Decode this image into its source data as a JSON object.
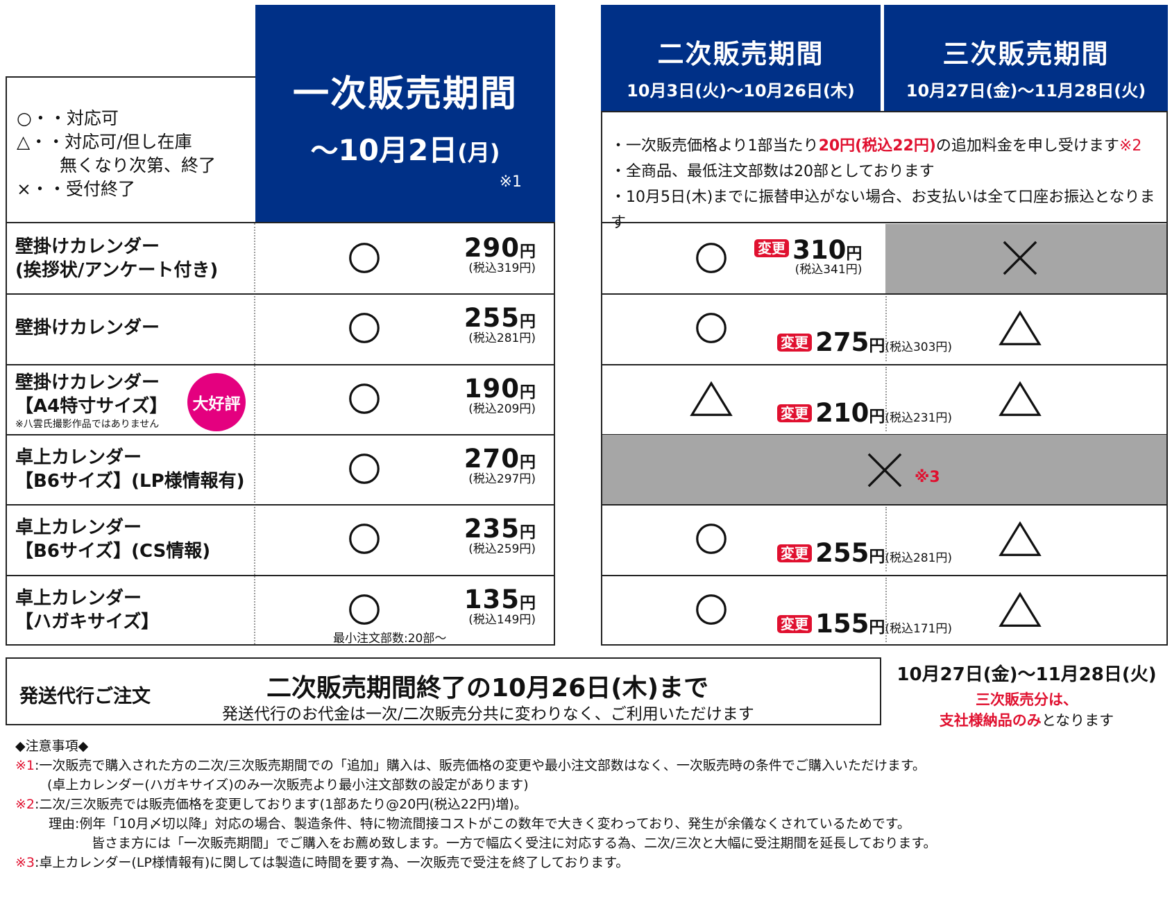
{
  "legend": {
    "circle": "○・・対応可",
    "triangle_l1": "△・・対応可/但し在庫",
    "triangle_l2": "無くなり次第、終了",
    "cross": "×・・受付終了"
  },
  "period1": {
    "title": "一次販売期間",
    "date_prefix": "〜",
    "date_main": "10月2日",
    "date_dow": "(月)",
    "note": "※1"
  },
  "period2": {
    "title": "二次販売期間",
    "date": "10月3日(火)〜10月26日(木)"
  },
  "period3": {
    "title": "三次販売期間",
    "date": "10月27日(金)〜11月28日(火)"
  },
  "notice": {
    "l1a": "・一次販売価格より1部当たり",
    "l1b": "20円(税込22円)",
    "l1c": "の追加料金を申し受けます",
    "l1d": "※2",
    "l2": "・全商品、最低注文部数は20部としております",
    "l3": "・10月5日(木)までに振替申込がない場合、お支払いは全て口座お振込となります"
  },
  "badge_label": "変更",
  "yen": "円",
  "popular_badge": "大好評",
  "products": [
    {
      "name_l1": "壁掛けカレンダー",
      "name_l2": "(挨拶状/アンケート付き)",
      "p1": "290",
      "p1_tax": "(税込319円)",
      "p2": "310",
      "p2_tax": "(税込341円)",
      "s1": "circle",
      "s2": "circle",
      "s3": "cross"
    },
    {
      "name_l1": "壁掛けカレンダー",
      "p1": "255",
      "p1_tax": "(税込281円)",
      "p2": "275",
      "p2_tax": "(税込303円)",
      "s1": "circle",
      "s2": "circle",
      "s3": "triangle"
    },
    {
      "name_l1": "壁掛けカレンダー",
      "name_l2": "【A4特寸サイズ】",
      "name_note": "※八雲氏撮影作品ではありません",
      "p1": "190",
      "p1_tax": "(税込209円)",
      "p2": "210",
      "p2_tax": "(税込231円)",
      "s1": "circle",
      "s2": "triangle",
      "s3": "triangle"
    },
    {
      "name_l1": "卓上カレンダー",
      "name_l2": "【B6サイズ】(LP様情報有)",
      "p1": "270",
      "p1_tax": "(税込297円)",
      "s1": "circle",
      "s23": "cross",
      "s23_note": "※3"
    },
    {
      "name_l1": "卓上カレンダー",
      "name_l2": "【B6サイズ】(CS情報)",
      "p1": "235",
      "p1_tax": "(税込259円)",
      "p2": "255",
      "p2_tax": "(税込281円)",
      "s1": "circle",
      "s2": "circle",
      "s3": "triangle"
    },
    {
      "name_l1": "卓上カレンダー",
      "name_l2": "【ハガキサイズ】",
      "p1": "135",
      "p1_tax": "(税込149円)",
      "p1_note": "最小注文部数:20部〜",
      "p2": "155",
      "p2_tax": "(税込171円)",
      "s1": "circle",
      "s2": "circle",
      "s3": "triangle"
    }
  ],
  "shipping": {
    "label": "発送代行ご注文",
    "main": "二次販売期間終了の10月26日(木)まで",
    "sub": "発送代行のお代金は一次/二次販売分共に変わりなく、ご利用いただけます",
    "right_date": "10月27日(金)〜11月28日(火)",
    "right_red1": "三次販売分は、",
    "right_red2": "支社様納品のみ",
    "right_tail": "となります"
  },
  "notes": {
    "heading": "◆注意事項◆",
    "n1_mark": "※1",
    "n1_l1": ":一次販売で購入された方の二次/三次販売期間での「追加」購入は、販売価格の変更や最小注文部数はなく、一次販売時の条件でご購入いただけます。",
    "n1_l2": "(卓上カレンダー(ハガキサイズ)のみ一次販売より最小注文部数の設定があります)",
    "n2_mark": "※2",
    "n2_l1": ":二次/三次販売では販売価格を変更しております(1部あたり@20円(税込22円)増)。",
    "n2_l2": "理由:例年「10月〆切以降」対応の場合、製造条件、特に物流間接コストがこの数年で大きく変わっており、発生が余儀なくされているためです。",
    "n2_l3": "皆さま方には「一次販売期間」でご購入をお薦め致します。一方で幅広く受注に対応する為、二次/三次と大幅に受注期間を延長しております。",
    "n3_mark": "※3",
    "n3_l1": ":卓上カレンダー(LP様情報有)に関しては製造に時間を要す為、一次販売で受注を終了しております。"
  }
}
